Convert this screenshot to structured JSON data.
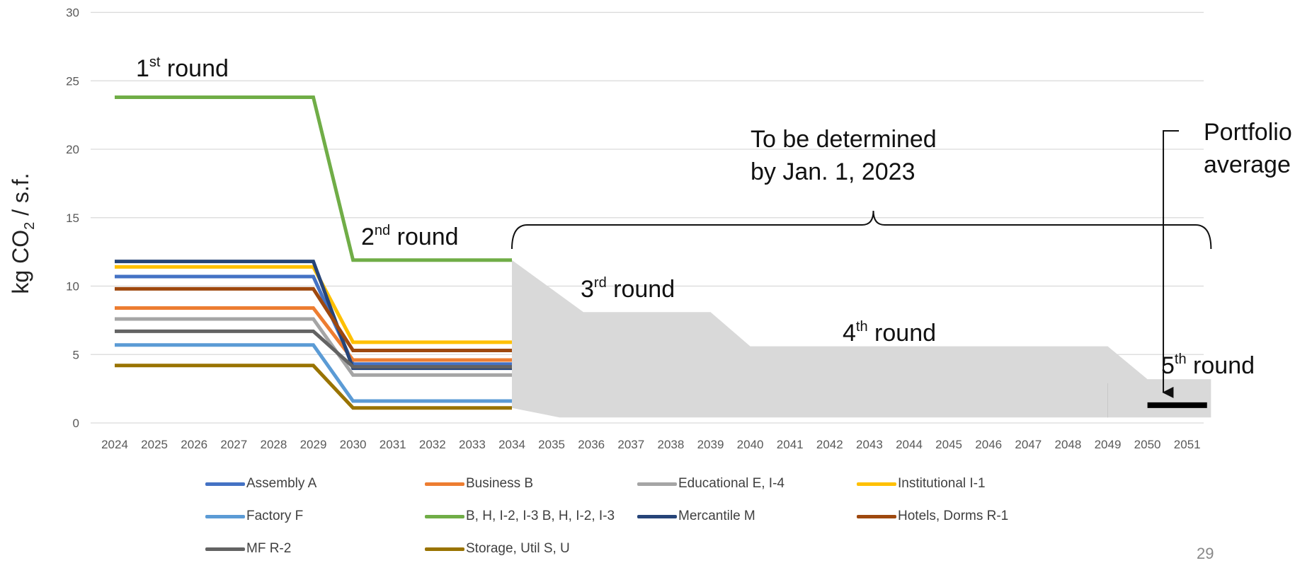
{
  "chart_data": {
    "type": "line",
    "ylabel": "kg CO2 / s.f.",
    "ylim": [
      0,
      30
    ],
    "yticks": [
      "0",
      "5",
      "10",
      "15",
      "20",
      "25",
      "30"
    ],
    "x": [
      "2024",
      "2025",
      "2026",
      "2027",
      "2028",
      "2029",
      "2030",
      "2031",
      "2032",
      "2033",
      "2034",
      "2035",
      "2036",
      "2037",
      "2038",
      "2039",
      "2040",
      "2041",
      "2042",
      "2043",
      "2044",
      "2045",
      "2046",
      "2047",
      "2048",
      "2049",
      "2050",
      "2051"
    ],
    "grid": true,
    "legend_position": "bottom",
    "series": [
      {
        "name": "Assembly A",
        "color": "#4472C4",
        "points": [
          [
            2024,
            10.7
          ],
          [
            2029,
            10.7
          ],
          [
            2030,
            4.3
          ],
          [
            2034,
            4.3
          ]
        ]
      },
      {
        "name": "Business B",
        "color": "#ED7D31",
        "points": [
          [
            2024,
            8.4
          ],
          [
            2029,
            8.4
          ],
          [
            2030,
            4.6
          ],
          [
            2034,
            4.6
          ]
        ]
      },
      {
        "name": "Educational E, I-4",
        "color": "#A5A5A5",
        "points": [
          [
            2024,
            7.6
          ],
          [
            2029,
            7.6
          ],
          [
            2030,
            3.5
          ],
          [
            2034,
            3.5
          ]
        ]
      },
      {
        "name": "Institutional I-1",
        "color": "#FFC000",
        "points": [
          [
            2024,
            11.4
          ],
          [
            2029,
            11.4
          ],
          [
            2030,
            5.9
          ],
          [
            2034,
            5.9
          ]
        ]
      },
      {
        "name": "Factory F",
        "color": "#5B9BD5",
        "points": [
          [
            2024,
            5.7
          ],
          [
            2029,
            5.7
          ],
          [
            2030,
            1.6
          ],
          [
            2034,
            1.6
          ]
        ]
      },
      {
        "name": "B, H, I-2, I-3 B, H, I-2, I-3",
        "color": "#70AD47",
        "points": [
          [
            2024,
            23.8
          ],
          [
            2029,
            23.8
          ],
          [
            2030,
            11.9
          ],
          [
            2034,
            11.9
          ]
        ]
      },
      {
        "name": "Mercantile M",
        "color": "#264478",
        "points": [
          [
            2024,
            11.8
          ],
          [
            2029,
            11.8
          ],
          [
            2030,
            4.0
          ],
          [
            2034,
            4.0
          ]
        ]
      },
      {
        "name": "Hotels, Dorms R-1",
        "color": "#9E480E",
        "points": [
          [
            2024,
            9.8
          ],
          [
            2029,
            9.8
          ],
          [
            2030,
            5.3
          ],
          [
            2034,
            5.3
          ]
        ]
      },
      {
        "name": "MF R-2",
        "color": "#636363",
        "points": [
          [
            2024,
            6.7
          ],
          [
            2029,
            6.7
          ],
          [
            2030,
            4.1
          ],
          [
            2034,
            4.1
          ]
        ]
      },
      {
        "name": "Storage, Util S, U",
        "color": "#997300",
        "points": [
          [
            2024,
            4.2
          ],
          [
            2029,
            4.2
          ],
          [
            2030,
            1.1
          ],
          [
            2034,
            1.1
          ]
        ]
      }
    ],
    "shaded_region": {
      "color": "#D9D9D9",
      "upper": [
        [
          2034,
          11.9
        ],
        [
          2035.8,
          8.1
        ],
        [
          2039,
          8.1
        ],
        [
          2040,
          5.6
        ],
        [
          2049,
          5.6
        ],
        [
          2050,
          3.2
        ],
        [
          2051.6,
          3.2
        ]
      ],
      "lower": [
        [
          2051.6,
          0.4
        ],
        [
          2035.2,
          0.4
        ],
        [
          2034,
          1.1
        ]
      ]
    },
    "portfolio_average": {
      "x_start": 2050,
      "x_end": 2051.5,
      "y": 1.3,
      "color": "#000000"
    },
    "annotations": {
      "round1": {
        "main": "1",
        "sup": "st",
        "rest": " round"
      },
      "round2": {
        "main": "2",
        "sup": "nd",
        "rest": " round"
      },
      "round3": {
        "main": "3",
        "sup": "rd",
        "rest": " round"
      },
      "round4": {
        "main": "4",
        "sup": "th",
        "rest": " round"
      },
      "round5": {
        "main": "5",
        "sup": "th",
        "rest": " round"
      },
      "tbd_line1": "To be determined",
      "tbd_line2": "by Jan. 1, 2023",
      "portfolio_line1": "Portfolio",
      "portfolio_line2": "average"
    }
  },
  "page_number": "29"
}
